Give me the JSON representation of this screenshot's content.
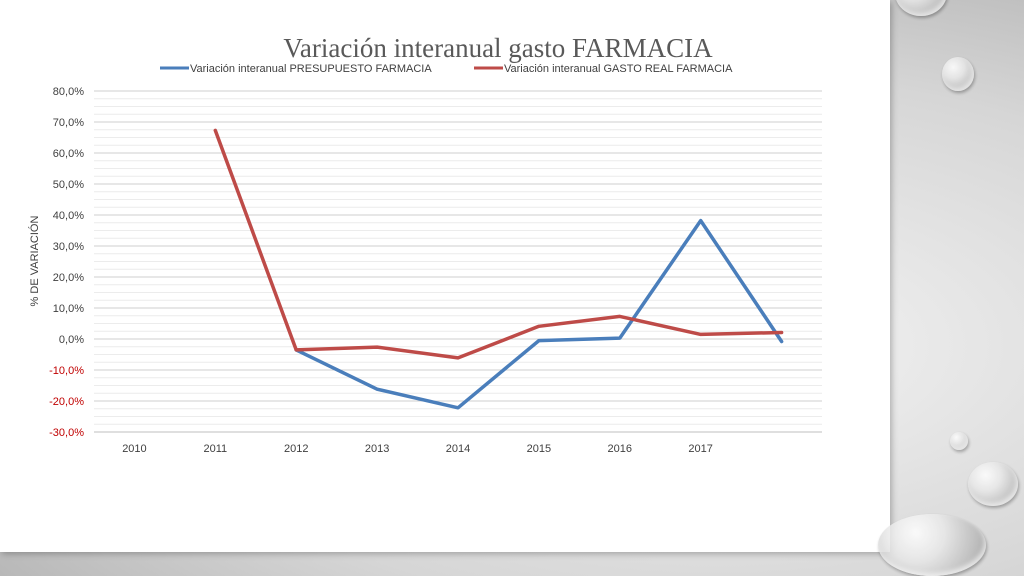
{
  "colors": {
    "presupuesto": "#4a7ebb",
    "gasto_real": "#be4b48",
    "negative_ticks": "#c00000",
    "grid": "#d9d9d9"
  },
  "chart_data": {
    "type": "line",
    "title": "Variación interanual gasto FARMACIA",
    "xlabel": "",
    "ylabel": "% DE VARIACIÓN",
    "categories": [
      "2010",
      "2011",
      "2012",
      "2013",
      "2014",
      "2015",
      "2016",
      "2017",
      ""
    ],
    "y_ticks": [
      "80,0%",
      "70,0%",
      "60,0%",
      "50,0%",
      "40,0%",
      "30,0%",
      "20,0%",
      "10,0%",
      "0,0%",
      "-10,0%",
      "-20,0%",
      "-30,0%"
    ],
    "ylim": [
      -30,
      80
    ],
    "grid": true,
    "legend_position": "top",
    "series": [
      {
        "name": "Variación interanual PRESUPUESTO FARMACIA",
        "color_key": "presupuesto",
        "values": [
          null,
          null,
          -3.5,
          -16.2,
          -22.2,
          -0.5,
          0.3,
          38.2,
          -0.8
        ]
      },
      {
        "name": "Variación interanual GASTO REAL FARMACIA",
        "color_key": "gasto_real",
        "values": [
          null,
          67.3,
          -3.5,
          -2.6,
          -6.1,
          4.1,
          7.3,
          1.5,
          2.1
        ]
      }
    ]
  }
}
